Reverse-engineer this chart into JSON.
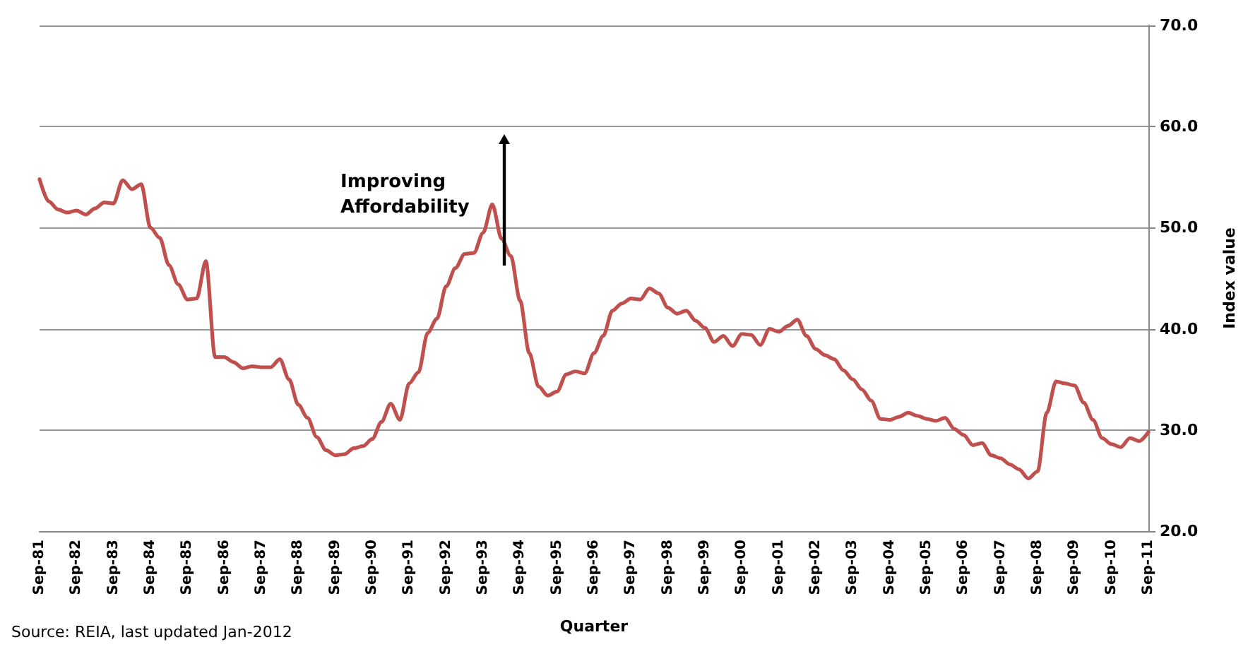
{
  "chart_data": {
    "type": "line",
    "xlabel": "Quarter",
    "y2label": "Index value",
    "annotations": [
      "Improving Affordability",
      "Source: REIA, last updated Jan-2012"
    ],
    "categories": [
      "Sep-81",
      null,
      null,
      null,
      "Sep-82",
      null,
      null,
      null,
      "Sep-83",
      null,
      null,
      null,
      "Sep-84",
      null,
      null,
      null,
      "Sep-85",
      null,
      null,
      null,
      "Sep-86",
      null,
      null,
      null,
      "Sep-87",
      null,
      null,
      null,
      "Sep-88",
      null,
      null,
      null,
      "Sep-89",
      null,
      null,
      null,
      "Sep-90",
      null,
      null,
      null,
      "Sep-91",
      null,
      null,
      null,
      "Sep-92",
      null,
      null,
      null,
      "Sep-93",
      null,
      null,
      null,
      "Sep-94",
      null,
      null,
      null,
      "Sep-95",
      null,
      null,
      null,
      "Sep-96",
      null,
      null,
      null,
      "Sep-97",
      null,
      null,
      null,
      "Sep-98",
      null,
      null,
      null,
      "Sep-99",
      null,
      null,
      null,
      "Sep-00",
      null,
      null,
      null,
      "Sep-01",
      null,
      null,
      null,
      "Sep-02",
      null,
      null,
      null,
      "Sep-03",
      null,
      null,
      null,
      "Sep-04",
      null,
      null,
      null,
      "Sep-05",
      null,
      null,
      null,
      "Sep-06",
      null,
      null,
      null,
      "Sep-07",
      null,
      null,
      null,
      "Sep-08",
      null,
      null,
      null,
      "Sep-09",
      null,
      null,
      null,
      "Sep-10",
      null,
      null,
      null,
      "Sep-11"
    ],
    "y2lim": [
      20,
      70
    ],
    "y2ticks": [
      {
        "value": 20,
        "label": "20.0"
      },
      {
        "value": 30,
        "label": "30.0"
      },
      {
        "value": 40,
        "label": "40.0"
      },
      {
        "value": 50,
        "label": "50.0"
      },
      {
        "value": 60,
        "label": "60.0"
      },
      {
        "value": 70,
        "label": "70.0"
      }
    ],
    "grid": "y",
    "marker": "none",
    "line_style": "solid",
    "series": [
      {
        "axis": "y2",
        "color": "#c0504d",
        "values": [
          54.8,
          52.6,
          51.8,
          51.5,
          51.7,
          51.3,
          51.9,
          52.5,
          52.4,
          54.7,
          53.8,
          54.3,
          50.0,
          49.0,
          46.3,
          44.4,
          42.9,
          43.0,
          46.7,
          37.2,
          37.2,
          36.7,
          36.1,
          36.3,
          36.2,
          36.2,
          37.0,
          35.0,
          32.5,
          31.2,
          29.3,
          28.0,
          27.5,
          27.6,
          28.2,
          28.4,
          29.1,
          30.8,
          32.6,
          31.0,
          34.6,
          35.7,
          39.6,
          41.0,
          44.2,
          46.0,
          47.4,
          47.5,
          49.5,
          52.3,
          48.9,
          47.2,
          42.8,
          37.6,
          34.3,
          33.4,
          33.8,
          35.5,
          35.8,
          35.6,
          37.6,
          39.3,
          41.8,
          42.5,
          43.0,
          42.9,
          44.0,
          43.5,
          42.1,
          41.5,
          41.8,
          40.8,
          40.1,
          38.7,
          39.3,
          38.3,
          39.5,
          39.4,
          38.4,
          40.0,
          39.7,
          40.3,
          40.9,
          39.3,
          38.0,
          37.4,
          37.0,
          35.9,
          35.0,
          34.0,
          32.9,
          31.1,
          31.0,
          31.3,
          31.7,
          31.4,
          31.1,
          30.9,
          31.2,
          30.1,
          29.5,
          28.5,
          28.7,
          27.5,
          27.2,
          26.6,
          26.1,
          25.2,
          25.9,
          31.7,
          34.8,
          34.6,
          34.4,
          32.7,
          31.0,
          29.2,
          28.6,
          28.3,
          29.2,
          28.9,
          29.8
        ]
      }
    ]
  }
}
